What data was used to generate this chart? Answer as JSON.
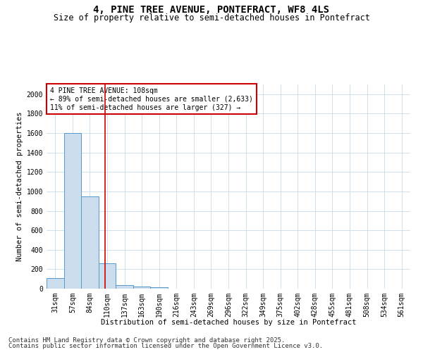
{
  "title": "4, PINE TREE AVENUE, PONTEFRACT, WF8 4LS",
  "subtitle": "Size of property relative to semi-detached houses in Pontefract",
  "xlabel": "Distribution of semi-detached houses by size in Pontefract",
  "ylabel": "Number of semi-detached properties",
  "categories": [
    "31sqm",
    "57sqm",
    "84sqm",
    "110sqm",
    "137sqm",
    "163sqm",
    "190sqm",
    "216sqm",
    "243sqm",
    "269sqm",
    "296sqm",
    "322sqm",
    "349sqm",
    "375sqm",
    "402sqm",
    "428sqm",
    "455sqm",
    "481sqm",
    "508sqm",
    "534sqm",
    "561sqm"
  ],
  "values": [
    110,
    1600,
    950,
    260,
    35,
    20,
    15,
    0,
    0,
    0,
    0,
    0,
    0,
    0,
    0,
    0,
    0,
    0,
    0,
    0,
    0
  ],
  "bar_color": "#ccdded",
  "bar_edge_color": "#5599cc",
  "vline_x": 2.87,
  "vline_color": "#cc0000",
  "annotation_line1": "4 PINE TREE AVENUE: 108sqm",
  "annotation_line2": "← 89% of semi-detached houses are smaller (2,633)",
  "annotation_line3": "11% of semi-detached houses are larger (327) →",
  "annotation_box_color": "#cc0000",
  "ylim": [
    0,
    2100
  ],
  "yticks": [
    0,
    200,
    400,
    600,
    800,
    1000,
    1200,
    1400,
    1600,
    1800,
    2000
  ],
  "footer1": "Contains HM Land Registry data © Crown copyright and database right 2025.",
  "footer2": "Contains public sector information licensed under the Open Government Licence v3.0.",
  "bg_color": "#ffffff",
  "grid_color": "#c8dce8",
  "title_fontsize": 10,
  "subtitle_fontsize": 8.5,
  "axis_label_fontsize": 7.5,
  "tick_fontsize": 7,
  "annotation_fontsize": 7,
  "footer_fontsize": 6.5
}
